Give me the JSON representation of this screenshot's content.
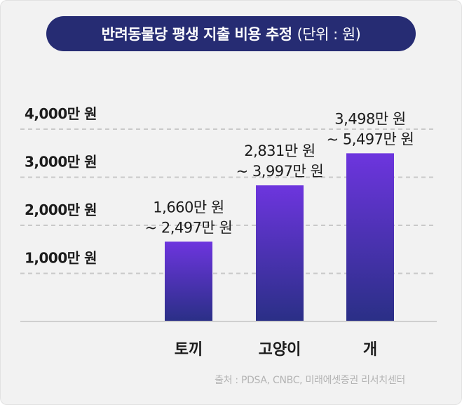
{
  "title": "반려동물당 평생 지출 비용 추정",
  "unit_note": "(단위 : 원)",
  "source": "출처 : PDSA, CNBC, 미래에셋증권 리서치센터",
  "colors": {
    "pill": "#262c73",
    "bar_top": "#6d35de",
    "bar_bottom": "#2a2f86",
    "grid": "#c9c9c9",
    "text": "#1c1c1c",
    "background": "#f2f2f2"
  },
  "chart_data": {
    "type": "bar",
    "title": "반려동물당 평생 지출 비용 추정",
    "unit": "원",
    "categories": [
      "토끼",
      "고양이",
      "개"
    ],
    "ranges": [
      {
        "low": 16600000,
        "high": 24970000
      },
      {
        "low": 28310000,
        "high": 39970000
      },
      {
        "low": 34980000,
        "high": 54970000
      }
    ],
    "values": [
      16600000,
      28310000,
      34980000
    ],
    "data_labels": [
      [
        "1,660만 원",
        "~ 2,497만 원"
      ],
      [
        "2,831만 원",
        "~ 3,997만 원"
      ],
      [
        "3,498만 원",
        "~ 5,497만 원"
      ]
    ],
    "y_ticks": [
      10000000,
      20000000,
      30000000,
      40000000
    ],
    "y_tick_labels": [
      "1,000만 원",
      "2,000만 원",
      "3,000만 원",
      "4,000만 원"
    ],
    "grid": true,
    "legend": "none"
  }
}
